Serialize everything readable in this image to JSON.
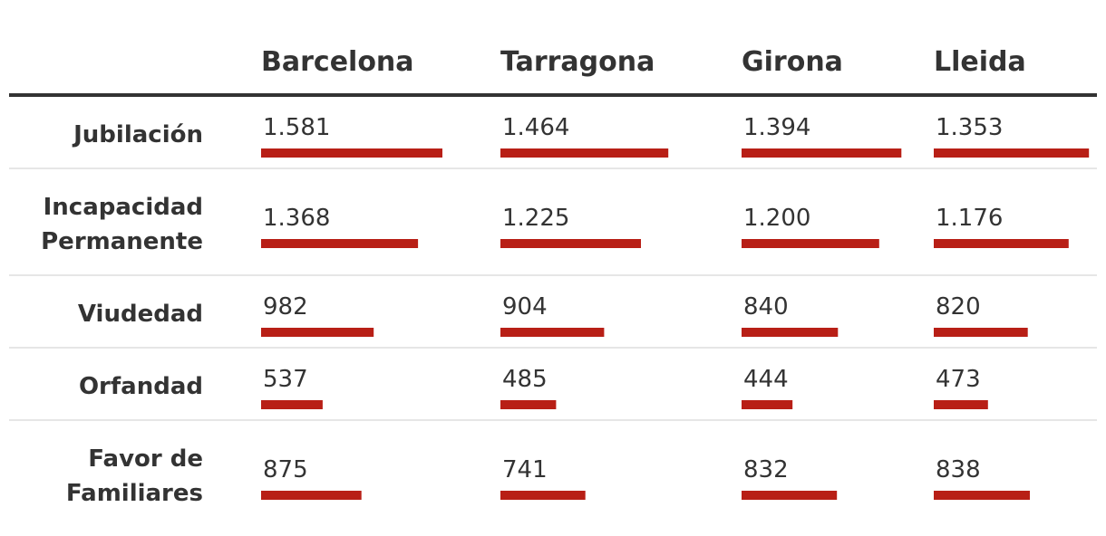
{
  "chart_data": {
    "type": "table",
    "columns": [
      "Barcelona",
      "Tarragona",
      "Girona",
      "Lleida"
    ],
    "rows": [
      {
        "label": [
          "Jubilación"
        ],
        "values": [
          1581,
          1464,
          1394,
          1353
        ],
        "display": [
          "1.581",
          "1.464",
          "1.394",
          "1.353"
        ]
      },
      {
        "label": [
          "Incapacidad",
          "Permanente"
        ],
        "values": [
          1368,
          1225,
          1200,
          1176
        ],
        "display": [
          "1.368",
          "1.225",
          "1.200",
          "1.176"
        ]
      },
      {
        "label": [
          "Viudedad"
        ],
        "values": [
          982,
          904,
          840,
          820
        ],
        "display": [
          "982",
          "904",
          "840",
          "820"
        ]
      },
      {
        "label": [
          "Orfandad"
        ],
        "values": [
          537,
          485,
          444,
          473
        ],
        "display": [
          "537",
          "485",
          "444",
          "473"
        ]
      },
      {
        "label": [
          "Favor de",
          "Familiares"
        ],
        "values": [
          875,
          741,
          832,
          838
        ],
        "display": [
          "875",
          "741",
          "832",
          "838"
        ]
      }
    ],
    "bar_color": "#b81f16"
  }
}
